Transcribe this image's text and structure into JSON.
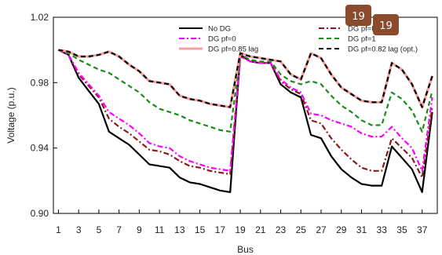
{
  "chart_data": {
    "type": "line",
    "xlabel": "Bus",
    "ylabel": "Voltage (p.u.)",
    "ylim": [
      0.9,
      1.02
    ],
    "yticks": [
      "0.90",
      "0.94",
      "0.98",
      "1.02"
    ],
    "xlim": [
      0.5,
      38.5
    ],
    "xticks": [
      "1",
      "3",
      "5",
      "7",
      "9",
      "11",
      "13",
      "15",
      "17",
      "19",
      "21",
      "23",
      "25",
      "27",
      "29",
      "31",
      "33",
      "35",
      "37"
    ],
    "grid": false,
    "legend_position": "top-right",
    "x": [
      1,
      2,
      3,
      4,
      5,
      6,
      7,
      8,
      9,
      10,
      11,
      12,
      13,
      14,
      15,
      16,
      17,
      18,
      19,
      20,
      21,
      22,
      23,
      24,
      25,
      26,
      27,
      28,
      29,
      30,
      31,
      32,
      33,
      34,
      35,
      36,
      37,
      38
    ],
    "series": [
      {
        "name": "No DG",
        "color": "#000000",
        "dash": "solid",
        "values": [
          1.0,
          0.997,
          0.983,
          0.975,
          0.967,
          0.95,
          0.946,
          0.942,
          0.936,
          0.93,
          0.929,
          0.928,
          0.922,
          0.919,
          0.918,
          0.916,
          0.914,
          0.913,
          0.997,
          0.993,
          0.992,
          0.992,
          0.979,
          0.974,
          0.971,
          0.948,
          0.946,
          0.935,
          0.927,
          0.922,
          0.918,
          0.917,
          0.917,
          0.941,
          0.934,
          0.927,
          0.913,
          0.962
        ]
      },
      {
        "name": "DG pf=lead",
        "color": "#8b1a1a",
        "dash": "dashdot",
        "values": [
          1.0,
          0.997,
          0.985,
          0.978,
          0.971,
          0.958,
          0.953,
          0.949,
          0.944,
          0.939,
          0.938,
          0.936,
          0.932,
          0.929,
          0.928,
          0.926,
          0.925,
          0.924,
          0.996,
          0.993,
          0.992,
          0.992,
          0.981,
          0.976,
          0.973,
          0.957,
          0.955,
          0.946,
          0.939,
          0.933,
          0.928,
          0.926,
          0.926,
          0.946,
          0.94,
          0.934,
          0.922,
          0.965
        ]
      },
      {
        "name": "DG pf=0",
        "color": "#ff00ff",
        "dash": "dashdot",
        "values": [
          1.0,
          0.997,
          0.986,
          0.979,
          0.972,
          0.962,
          0.958,
          0.954,
          0.949,
          0.943,
          0.941,
          0.94,
          0.935,
          0.932,
          0.93,
          0.928,
          0.927,
          0.926,
          0.996,
          0.993,
          0.992,
          0.992,
          0.982,
          0.977,
          0.974,
          0.961,
          0.96,
          0.957,
          0.955,
          0.953,
          0.949,
          0.947,
          0.947,
          0.953,
          0.946,
          0.94,
          0.926,
          0.971
        ]
      },
      {
        "name": "DG pf=1",
        "color": "#1a8c1a",
        "dash": "dashed",
        "values": [
          1.0,
          0.998,
          0.994,
          0.991,
          0.988,
          0.986,
          0.982,
          0.978,
          0.974,
          0.968,
          0.964,
          0.962,
          0.96,
          0.957,
          0.955,
          0.953,
          0.951,
          0.95,
          0.997,
          0.994,
          0.993,
          0.993,
          0.985,
          0.981,
          0.979,
          0.981,
          0.979,
          0.972,
          0.966,
          0.962,
          0.957,
          0.954,
          0.954,
          0.974,
          0.97,
          0.963,
          0.95,
          0.975
        ]
      },
      {
        "name": "DG pf=0.85 lag",
        "color": "#f4a0a0",
        "dash": "solid",
        "values": [
          1.0,
          0.999,
          0.996,
          0.996,
          0.997,
          0.999,
          0.996,
          0.991,
          0.987,
          0.981,
          0.98,
          0.979,
          0.972,
          0.97,
          0.969,
          0.967,
          0.966,
          0.965,
          0.998,
          0.996,
          0.995,
          0.994,
          0.993,
          0.985,
          0.982,
          0.998,
          0.995,
          0.985,
          0.977,
          0.973,
          0.969,
          0.968,
          0.968,
          0.992,
          0.988,
          0.979,
          0.965,
          0.984
        ]
      },
      {
        "name": "DG pf=0.82 lag (opt.)",
        "color": "#000000",
        "dash": "dashed",
        "values": [
          1.0,
          0.999,
          0.996,
          0.996,
          0.997,
          0.999,
          0.996,
          0.991,
          0.987,
          0.981,
          0.98,
          0.979,
          0.972,
          0.97,
          0.969,
          0.967,
          0.966,
          0.965,
          0.998,
          0.996,
          0.995,
          0.994,
          0.993,
          0.985,
          0.982,
          0.998,
          0.995,
          0.985,
          0.977,
          0.973,
          0.969,
          0.968,
          0.968,
          0.992,
          0.988,
          0.979,
          0.965,
          0.984
        ]
      }
    ]
  },
  "overlay_badges": [
    {
      "text": "19",
      "color": "#8b4a2b"
    },
    {
      "text": "19",
      "color": "#8b4a2b"
    }
  ]
}
